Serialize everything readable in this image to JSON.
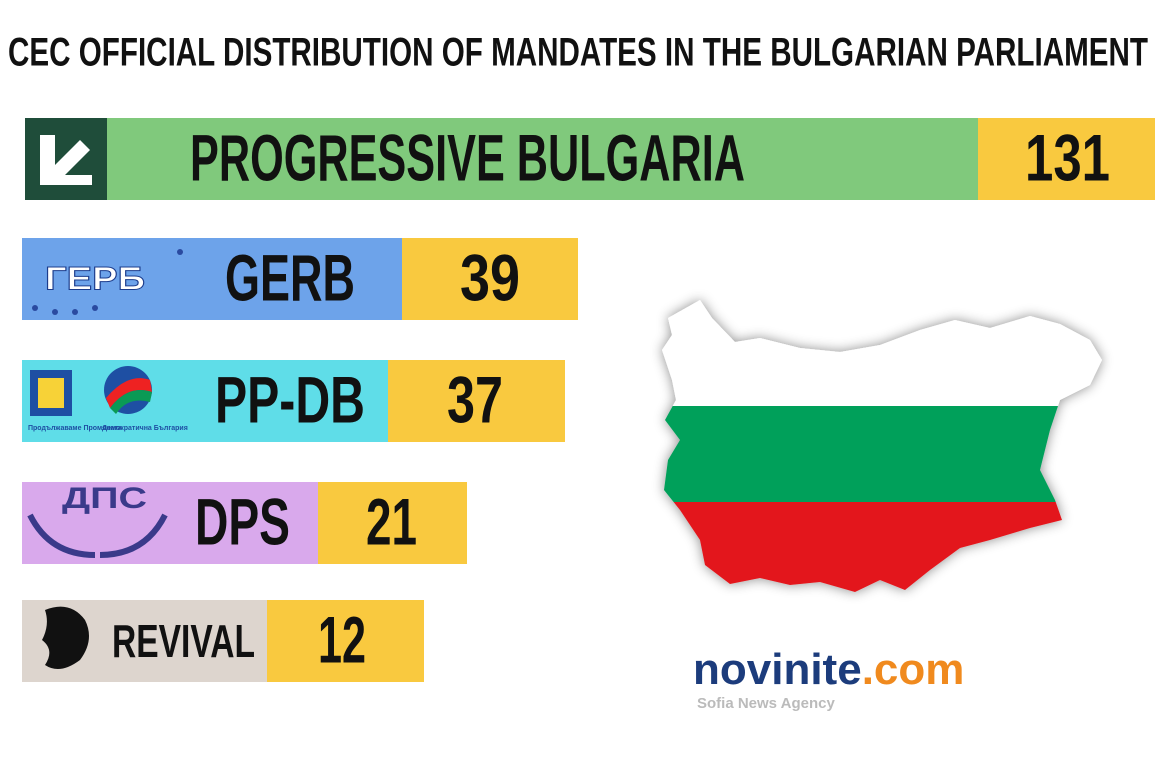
{
  "title": "CEC OFFICIAL DISTRIBUTION OF MANDATES IN THE BULGARIAN PARLIAMENT",
  "parties": [
    {
      "name": "PROGRESSIVE BULGARIA",
      "seats": "131"
    },
    {
      "name": "GERB",
      "seats": "39",
      "logo_text": "ГЕРБ"
    },
    {
      "name": "PP-DB",
      "seats": "37",
      "logo_text": "Продължаваме Промяната",
      "logo_text_2": "Демократична България"
    },
    {
      "name": "DPS",
      "seats": "21",
      "logo_text": "ДПС"
    },
    {
      "name": "REVIVAL",
      "seats": "12"
    }
  ],
  "brand": {
    "name_main": "novinite",
    "name_suffix": ".com",
    "tagline": "Sofia News Agency"
  }
}
